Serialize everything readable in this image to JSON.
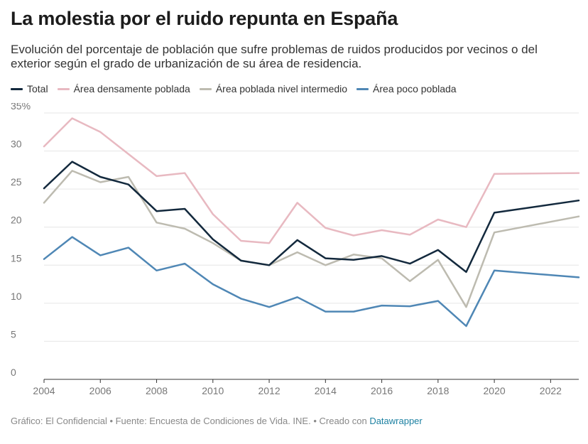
{
  "title": "La molestia por el ruido repunta en España",
  "subtitle": "Evolución del porcentaje de población que sufre problemas de ruidos producidos por vecinos o del exterior según el grado de urbanización de su área de residencia.",
  "footer": {
    "credit": "Gráfico: El Confidencial • Fuente: Encuesta de Condiciones de Vida. INE. • Creado con ",
    "tool": "Datawrapper"
  },
  "colors": {
    "Total": "#13293d",
    "Área densamente poblada": "#e8b9c1",
    "Área poblada nivel intermedio": "#bdbbb0",
    "Área poco poblada": "#4f87b5"
  },
  "chart_data": {
    "type": "line",
    "title": "La molestia por el ruido repunta en España",
    "xlabel": "",
    "ylabel": "",
    "x": [
      2004,
      2005,
      2006,
      2007,
      2008,
      2009,
      2010,
      2011,
      2012,
      2013,
      2014,
      2015,
      2016,
      2017,
      2018,
      2019,
      2020,
      2023
    ],
    "xlim": [
      2004,
      2023
    ],
    "ylim": [
      0,
      35
    ],
    "x_ticks": [
      "2004",
      "2006",
      "2008",
      "2010",
      "2012",
      "2014",
      "2016",
      "2018",
      "2020",
      "2022"
    ],
    "y_ticks": [
      "0",
      "5",
      "10",
      "15",
      "20",
      "25",
      "30",
      "35%"
    ],
    "grid": true,
    "legend": "top-left",
    "series": [
      {
        "name": "Total",
        "values": [
          25.1,
          28.6,
          26.6,
          25.6,
          22.1,
          22.4,
          18.4,
          15.6,
          15.0,
          18.3,
          15.9,
          15.7,
          16.2,
          15.2,
          17.0,
          14.1,
          21.9,
          23.5
        ]
      },
      {
        "name": "Área densamente poblada",
        "values": [
          30.6,
          34.3,
          32.5,
          29.6,
          26.7,
          27.1,
          21.7,
          18.2,
          17.9,
          23.2,
          19.9,
          18.9,
          19.6,
          19.0,
          21.0,
          20.0,
          27.0,
          27.1
        ]
      },
      {
        "name": "Área poblada nivel intermedio",
        "values": [
          23.2,
          27.4,
          25.9,
          26.6,
          20.6,
          19.8,
          17.9,
          15.6,
          15.0,
          16.7,
          15.0,
          16.4,
          15.9,
          12.9,
          15.7,
          9.5,
          19.3,
          21.4
        ]
      },
      {
        "name": "Área poco poblada",
        "values": [
          15.8,
          18.7,
          16.3,
          17.3,
          14.3,
          15.2,
          12.5,
          10.6,
          9.5,
          10.8,
          8.9,
          8.9,
          9.7,
          9.6,
          10.3,
          7.0,
          14.3,
          13.4
        ]
      }
    ]
  }
}
